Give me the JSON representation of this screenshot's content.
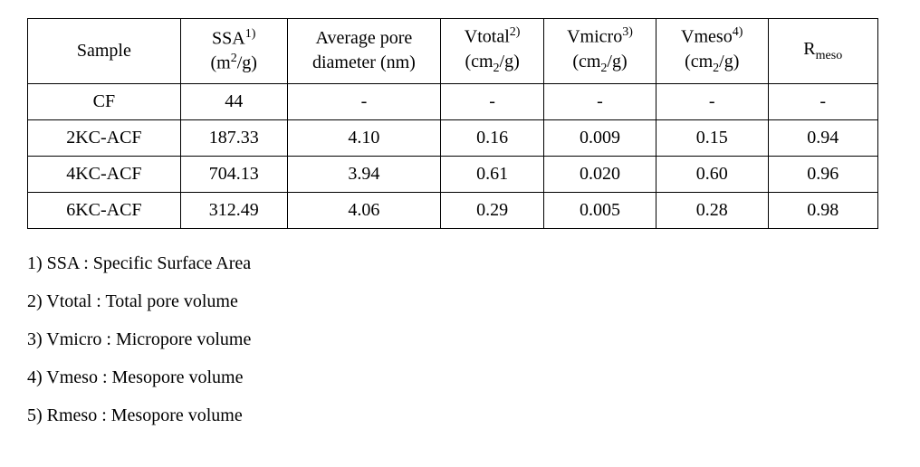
{
  "table": {
    "headers": {
      "sample": "Sample",
      "ssa_label": "SSA",
      "ssa_sup": "1)",
      "ssa_unit_pre": "(m",
      "ssa_unit_sup": "2",
      "ssa_unit_post": "/g)",
      "apd_line1": "Average pore",
      "apd_line2": "diameter (nm)",
      "vtotal_label": "Vtotal",
      "vtotal_sup": "2)",
      "vtotal_unit_pre": "(cm",
      "vtotal_unit_sub": "2",
      "vtotal_unit_post": "/g)",
      "vmicro_label": "Vmicro",
      "vmicro_sup": "3)",
      "vmicro_unit_pre": "(cm",
      "vmicro_unit_sub": "2",
      "vmicro_unit_post": "/g)",
      "vmeso_label": "Vmeso",
      "vmeso_sup": "4)",
      "vmeso_unit_pre": "(cm",
      "vmeso_unit_sub": "2",
      "vmeso_unit_post": "/g)",
      "rmeso_pre": "R",
      "rmeso_sub": "meso"
    },
    "rows": [
      {
        "sample": "CF",
        "ssa": "44",
        "apd": "-",
        "vtotal": "-",
        "vmicro": "-",
        "vmeso": "-",
        "rmeso": "-"
      },
      {
        "sample": "2KC-ACF",
        "ssa": "187.33",
        "apd": "4.10",
        "vtotal": "0.16",
        "vmicro": "0.009",
        "vmeso": "0.15",
        "rmeso": "0.94"
      },
      {
        "sample": "4KC-ACF",
        "ssa": "704.13",
        "apd": "3.94",
        "vtotal": "0.61",
        "vmicro": "0.020",
        "vmeso": "0.60",
        "rmeso": "0.96"
      },
      {
        "sample": "6KC-ACF",
        "ssa": "312.49",
        "apd": "4.06",
        "vtotal": "0.29",
        "vmicro": "0.005",
        "vmeso": "0.28",
        "rmeso": "0.98"
      }
    ]
  },
  "footnotes": [
    "1) SSA : Specific Surface Area",
    "2) Vtotal : Total pore volume",
    "3) Vmicro : Micropore volume",
    "4) Vmeso : Mesopore volume",
    "5) Rmeso : Mesopore volume"
  ]
}
